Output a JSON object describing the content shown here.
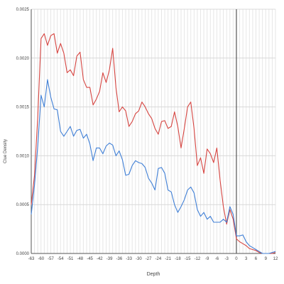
{
  "chart_data": {
    "type": "line",
    "title": "",
    "xlabel": "Depth",
    "ylabel": "Clue Density",
    "xlim": [
      -63,
      12
    ],
    "ylim": [
      0,
      0.0025
    ],
    "x_ticks": [
      -63,
      -60,
      -57,
      -54,
      -51,
      -48,
      -45,
      -42,
      -39,
      -36,
      -33,
      -30,
      -27,
      -24,
      -21,
      -18,
      -15,
      -12,
      -9,
      -6,
      -3,
      0,
      3,
      6,
      9,
      12
    ],
    "x_tick_labels": [
      "-63",
      "-60",
      "-57",
      "-54",
      "-51",
      "-48",
      "-45",
      "-42",
      "-39",
      "-36",
      "-33",
      "-30",
      "-27",
      "-24",
      "-21",
      "-18",
      "-15",
      "-12",
      "-9",
      "-6",
      "-3",
      "0",
      "3",
      "6",
      "9",
      "12"
    ],
    "y_ticks": [
      0,
      0.0005,
      0.001,
      0.0015,
      0.002,
      0.0025
    ],
    "y_tick_labels": [
      "0.0000",
      "0.0005",
      "0.0010",
      "0.0015",
      "0.0020",
      "0.0025"
    ],
    "grid": true,
    "legend": "none",
    "reference_line_x": 0,
    "series": [
      {
        "color": "#d64541",
        "points": [
          [
            -63,
            0.0005
          ],
          [
            -62,
            0.0008
          ],
          [
            -61,
            0.0014
          ],
          [
            -60,
            0.0022
          ],
          [
            -59,
            0.00225
          ],
          [
            -58,
            0.00213
          ],
          [
            -57,
            0.00223
          ],
          [
            -56,
            0.00225
          ],
          [
            -55,
            0.00205
          ],
          [
            -54,
            0.00215
          ],
          [
            -53,
            0.00205
          ],
          [
            -52,
            0.00185
          ],
          [
            -51,
            0.00188
          ],
          [
            -50,
            0.00182
          ],
          [
            -49,
            0.00202
          ],
          [
            -48,
            0.00206
          ],
          [
            -47,
            0.00178
          ],
          [
            -46,
            0.0017
          ],
          [
            -45,
            0.0017
          ],
          [
            -44,
            0.00152
          ],
          [
            -43,
            0.00158
          ],
          [
            -42,
            0.00166
          ],
          [
            -41,
            0.00185
          ],
          [
            -40,
            0.00175
          ],
          [
            -39,
            0.00188
          ],
          [
            -38,
            0.0021
          ],
          [
            -37,
            0.0017
          ],
          [
            -36,
            0.00145
          ],
          [
            -35,
            0.0015
          ],
          [
            -34,
            0.00146
          ],
          [
            -33,
            0.0013
          ],
          [
            -32,
            0.00135
          ],
          [
            -31,
            0.00143
          ],
          [
            -30,
            0.00146
          ],
          [
            -29,
            0.00155
          ],
          [
            -28,
            0.0015
          ],
          [
            -27,
            0.00143
          ],
          [
            -26,
            0.00138
          ],
          [
            -25,
            0.00128
          ],
          [
            -24,
            0.00122
          ],
          [
            -23,
            0.00135
          ],
          [
            -22,
            0.00136
          ],
          [
            -21,
            0.00128
          ],
          [
            -20,
            0.0013
          ],
          [
            -19,
            0.00145
          ],
          [
            -18,
            0.0013
          ],
          [
            -17,
            0.00108
          ],
          [
            -16,
            0.00128
          ],
          [
            -15,
            0.0015
          ],
          [
            -14,
            0.00155
          ],
          [
            -13,
            0.00128
          ],
          [
            -12,
            0.0009
          ],
          [
            -11,
            0.00098
          ],
          [
            -10,
            0.00082
          ],
          [
            -9,
            0.00107
          ],
          [
            -8,
            0.00102
          ],
          [
            -7,
            0.00093
          ],
          [
            -6,
            0.00108
          ],
          [
            -5,
            0.00075
          ],
          [
            -4,
            0.00048
          ],
          [
            -3,
            0.0003
          ],
          [
            -2,
            0.00045
          ],
          [
            -1,
            0.00035
          ],
          [
            0,
            0.00015
          ],
          [
            1,
            0.00012
          ],
          [
            2,
            0.0001
          ],
          [
            3,
            8e-05
          ],
          [
            4,
            5e-05
          ],
          [
            5,
            4e-05
          ],
          [
            6,
            3e-05
          ],
          [
            7,
            1e-05
          ],
          [
            8,
            0.0
          ],
          [
            9,
            0.0
          ],
          [
            10,
            0.0
          ],
          [
            11,
            0.0
          ],
          [
            12,
            1e-05
          ]
        ]
      },
      {
        "color": "#3f7fd6",
        "points": [
          [
            -63,
            0.0004
          ],
          [
            -62,
            0.0007
          ],
          [
            -61,
            0.0011
          ],
          [
            -60,
            0.00162
          ],
          [
            -59,
            0.0015
          ],
          [
            -58,
            0.00178
          ],
          [
            -57,
            0.0016
          ],
          [
            -56,
            0.00148
          ],
          [
            -55,
            0.00147
          ],
          [
            -54,
            0.00125
          ],
          [
            -53,
            0.0012
          ],
          [
            -52,
            0.00125
          ],
          [
            -51,
            0.0013
          ],
          [
            -50,
            0.0012
          ],
          [
            -49,
            0.00126
          ],
          [
            -48,
            0.00127
          ],
          [
            -47,
            0.00118
          ],
          [
            -46,
            0.00122
          ],
          [
            -45,
            0.00112
          ],
          [
            -44,
            0.00095
          ],
          [
            -43,
            0.00108
          ],
          [
            -42,
            0.00108
          ],
          [
            -41,
            0.00102
          ],
          [
            -40,
            0.0011
          ],
          [
            -39,
            0.00113
          ],
          [
            -38,
            0.00111
          ],
          [
            -37,
            0.001
          ],
          [
            -36,
            0.00105
          ],
          [
            -35,
            0.00096
          ],
          [
            -34,
            0.0008
          ],
          [
            -33,
            0.00081
          ],
          [
            -32,
            0.0009
          ],
          [
            -31,
            0.00095
          ],
          [
            -30,
            0.00093
          ],
          [
            -29,
            0.00092
          ],
          [
            -28,
            0.00088
          ],
          [
            -27,
            0.00077
          ],
          [
            -26,
            0.00072
          ],
          [
            -25,
            0.00065
          ],
          [
            -24,
            0.00087
          ],
          [
            -23,
            0.00088
          ],
          [
            -22,
            0.00082
          ],
          [
            -21,
            0.00065
          ],
          [
            -20,
            0.00063
          ],
          [
            -19,
            0.0005
          ],
          [
            -18,
            0.00042
          ],
          [
            -17,
            0.00048
          ],
          [
            -16,
            0.00055
          ],
          [
            -15,
            0.00065
          ],
          [
            -14,
            0.00068
          ],
          [
            -13,
            0.00062
          ],
          [
            -12,
            0.00045
          ],
          [
            -11,
            0.00038
          ],
          [
            -10,
            0.00042
          ],
          [
            -9,
            0.00035
          ],
          [
            -8,
            0.00038
          ],
          [
            -7,
            0.00032
          ],
          [
            -6,
            0.00032
          ],
          [
            -5,
            0.00032
          ],
          [
            -4,
            0.00035
          ],
          [
            -3,
            0.00032
          ],
          [
            -2,
            0.00048
          ],
          [
            -1,
            0.0004
          ],
          [
            0,
            0.00018
          ],
          [
            1,
            0.00018
          ],
          [
            2,
            0.00019
          ],
          [
            3,
            0.00012
          ],
          [
            4,
            8e-05
          ],
          [
            5,
            6e-05
          ],
          [
            6,
            4e-05
          ],
          [
            7,
            2e-05
          ],
          [
            8,
            0.0
          ],
          [
            9,
            0.0
          ],
          [
            10,
            0.0
          ],
          [
            11,
            1e-05
          ],
          [
            12,
            2e-05
          ]
        ]
      }
    ]
  }
}
